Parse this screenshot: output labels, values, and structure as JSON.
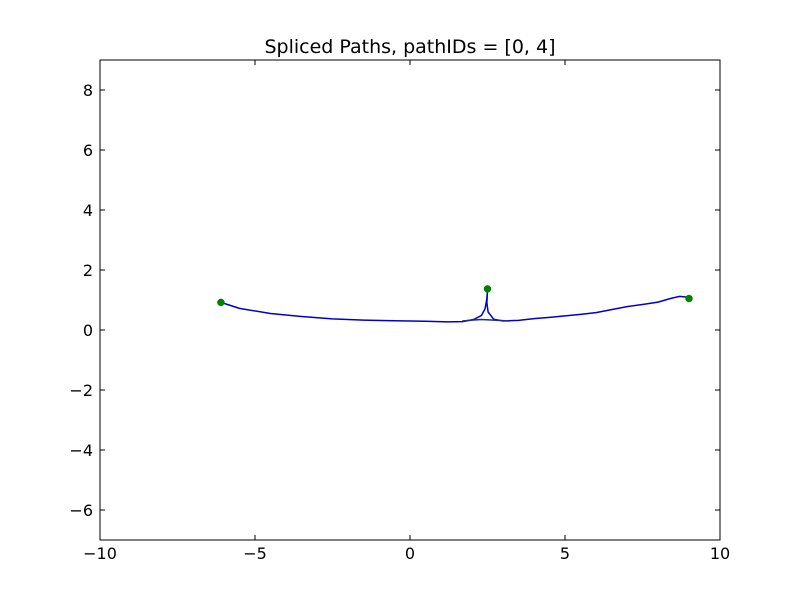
{
  "chart_data": {
    "type": "line",
    "title": "Spliced Paths, pathIDs = [0, 4]",
    "xlabel": "",
    "ylabel": "",
    "xlim": [
      -10,
      10
    ],
    "ylim": [
      -7,
      9
    ],
    "xticks": [
      -10,
      -5,
      0,
      5,
      10
    ],
    "yticks": [
      -6,
      -4,
      -2,
      0,
      2,
      4,
      6,
      8
    ],
    "xtick_labels": [
      "−10",
      "−5",
      "0",
      "5",
      "10"
    ],
    "ytick_labels": [
      "−6",
      "−4",
      "−2",
      "0",
      "2",
      "4",
      "6",
      "8"
    ],
    "grid": false,
    "series": [
      {
        "color": "#0000cc",
        "points": [
          [
            -6.1,
            0.92
          ],
          [
            -5.5,
            0.72
          ],
          [
            -4.5,
            0.55
          ],
          [
            -3.5,
            0.45
          ],
          [
            -2.5,
            0.37
          ],
          [
            -1.5,
            0.33
          ],
          [
            -0.5,
            0.31
          ],
          [
            0.5,
            0.29
          ],
          [
            1.2,
            0.27
          ],
          [
            1.7,
            0.28
          ],
          [
            2.05,
            0.35
          ],
          [
            2.3,
            0.48
          ],
          [
            2.42,
            0.7
          ],
          [
            2.48,
            1.05
          ],
          [
            2.5,
            1.35
          ]
        ]
      },
      {
        "color": "#0000cc",
        "points": [
          [
            2.5,
            1.35
          ],
          [
            2.48,
            0.9
          ],
          [
            2.52,
            0.6
          ],
          [
            2.7,
            0.36
          ],
          [
            3.0,
            0.3
          ],
          [
            3.5,
            0.32
          ],
          [
            4.0,
            0.38
          ],
          [
            4.5,
            0.42
          ],
          [
            5.0,
            0.47
          ],
          [
            5.5,
            0.52
          ],
          [
            6.0,
            0.58
          ],
          [
            6.5,
            0.68
          ],
          [
            7.0,
            0.78
          ],
          [
            7.5,
            0.85
          ],
          [
            8.0,
            0.93
          ],
          [
            8.4,
            1.05
          ],
          [
            8.7,
            1.12
          ],
          [
            8.9,
            1.1
          ],
          [
            9.0,
            1.05
          ]
        ]
      },
      {
        "color": "#1f2a8c",
        "points": [
          [
            1.7,
            0.3
          ],
          [
            2.0,
            0.33
          ],
          [
            2.3,
            0.35
          ],
          [
            2.7,
            0.33
          ],
          [
            3.2,
            0.3
          ]
        ]
      }
    ],
    "markers": {
      "color": "#008000",
      "points": [
        [
          -6.1,
          0.92
        ],
        [
          2.5,
          1.37
        ],
        [
          9.0,
          1.05
        ]
      ]
    }
  }
}
